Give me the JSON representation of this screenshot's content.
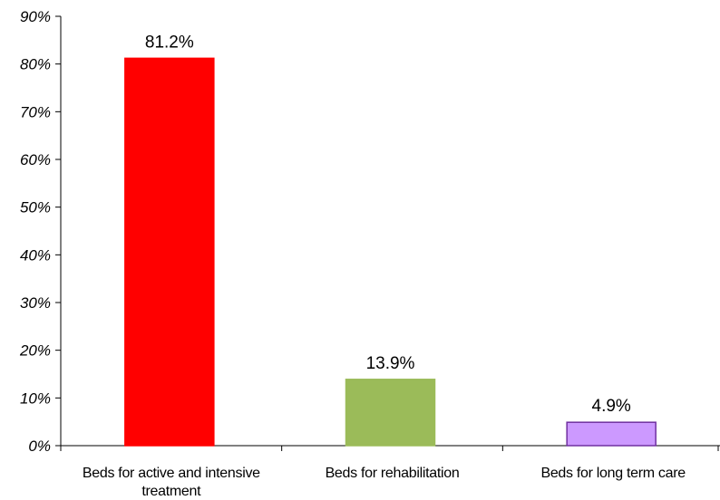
{
  "chart_data": {
    "type": "bar",
    "categories": [
      [
        "Beds for active and intensive",
        "treatment"
      ],
      [
        "Beds for rehabilitation"
      ],
      [
        "Beds for long term care"
      ]
    ],
    "values": [
      81.2,
      13.9,
      4.9
    ],
    "data_labels": [
      "81.2%",
      "13.9%",
      "4.9%"
    ],
    "bar_colors": [
      "#ff0000",
      "#9bbb59",
      "#cc99ff"
    ],
    "bar_border_colors": [
      "#ff0000",
      "#9bbb59",
      "#7030a0"
    ],
    "yticks": [
      0,
      10,
      20,
      30,
      40,
      50,
      60,
      70,
      80,
      90
    ],
    "ytick_labels": [
      "0%",
      "10%",
      "20%",
      "30%",
      "40%",
      "50%",
      "60%",
      "70%",
      "80%",
      "90%"
    ],
    "ylim": [
      0,
      90
    ],
    "grid": false,
    "legend": "none",
    "title": "",
    "xlabel": "",
    "ylabel": ""
  }
}
